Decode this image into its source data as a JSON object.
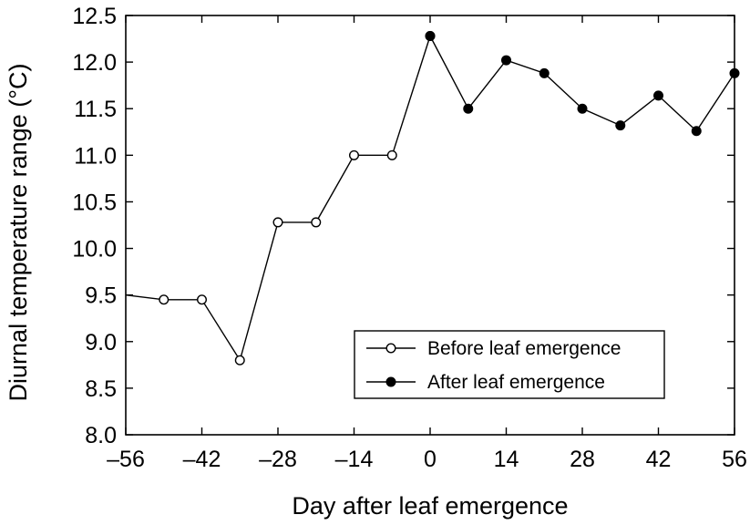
{
  "chart_data": {
    "type": "line",
    "xlabel": "Day after leaf emergence",
    "ylabel": "Diurnal temperature range (°C)",
    "xlim": [
      -56,
      56
    ],
    "ylim": [
      8.0,
      12.5
    ],
    "xticks": [
      -56,
      -42,
      -28,
      -14,
      0,
      14,
      28,
      42,
      56
    ],
    "xtick_labels": [
      "–56",
      "–42",
      "–28",
      "–14",
      "0",
      "14",
      "28",
      "42",
      "56"
    ],
    "yticks": [
      8.0,
      8.5,
      9.0,
      9.5,
      10.0,
      10.5,
      11.0,
      11.5,
      12.0,
      12.5
    ],
    "ytick_labels": [
      "8.0",
      "8.5",
      "9.0",
      "9.5",
      "10.0",
      "10.5",
      "11.0",
      "11.5",
      "12.0",
      "12.5"
    ],
    "grid": false,
    "legend_position": "bottom-right",
    "series": [
      {
        "name": "Before leaf emergence",
        "marker": "open-circle",
        "x": [
          -56,
          -49,
          -42,
          -35,
          -28,
          -21,
          -14,
          -7,
          0
        ],
        "y": [
          9.5,
          9.45,
          9.45,
          8.8,
          10.28,
          10.28,
          11.0,
          11.0,
          12.28
        ]
      },
      {
        "name": "After leaf emergence",
        "marker": "filled-circle",
        "x": [
          0,
          7,
          14,
          21,
          28,
          35,
          42,
          49,
          56
        ],
        "y": [
          12.28,
          11.5,
          12.02,
          11.88,
          11.5,
          11.32,
          11.64,
          11.26,
          11.88
        ]
      }
    ]
  }
}
